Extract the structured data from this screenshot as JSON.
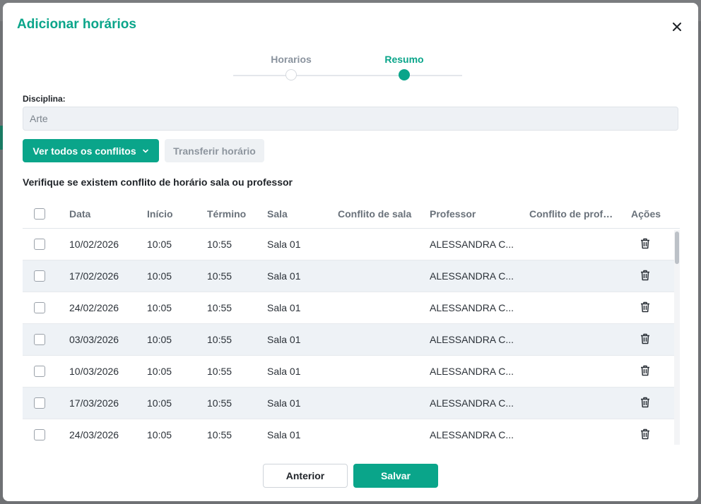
{
  "modal": {
    "title": "Adicionar horários"
  },
  "stepper": {
    "steps": [
      {
        "label": "Horarios",
        "state": "done"
      },
      {
        "label": "Resumo",
        "state": "active"
      }
    ]
  },
  "form": {
    "discipline_label": "Disciplina:",
    "discipline_value": "Arte"
  },
  "actions": {
    "conflicts_label": "Ver todos os conflitos",
    "transfer_label": "Transferir horário"
  },
  "section": {
    "heading": "Verifique se existem conflito de horário sala ou professor"
  },
  "table": {
    "columns": {
      "date": "Data",
      "start": "Início",
      "end": "Término",
      "room": "Sala",
      "room_conflict": "Conflito de sala",
      "teacher": "Professor",
      "teacher_conflict": "Conflito de prof…",
      "actions": "Ações"
    },
    "rows": [
      {
        "date": "10/02/2026",
        "start": "10:05",
        "end": "10:55",
        "room": "Sala 01",
        "room_conflict": "",
        "teacher": "ALESSANDRA C...",
        "teacher_conflict": ""
      },
      {
        "date": "17/02/2026",
        "start": "10:05",
        "end": "10:55",
        "room": "Sala 01",
        "room_conflict": "",
        "teacher": "ALESSANDRA C...",
        "teacher_conflict": ""
      },
      {
        "date": "24/02/2026",
        "start": "10:05",
        "end": "10:55",
        "room": "Sala 01",
        "room_conflict": "",
        "teacher": "ALESSANDRA C...",
        "teacher_conflict": ""
      },
      {
        "date": "03/03/2026",
        "start": "10:05",
        "end": "10:55",
        "room": "Sala 01",
        "room_conflict": "",
        "teacher": "ALESSANDRA C...",
        "teacher_conflict": ""
      },
      {
        "date": "10/03/2026",
        "start": "10:05",
        "end": "10:55",
        "room": "Sala 01",
        "room_conflict": "",
        "teacher": "ALESSANDRA C...",
        "teacher_conflict": ""
      },
      {
        "date": "17/03/2026",
        "start": "10:05",
        "end": "10:55",
        "room": "Sala 01",
        "room_conflict": "",
        "teacher": "ALESSANDRA C...",
        "teacher_conflict": ""
      },
      {
        "date": "24/03/2026",
        "start": "10:05",
        "end": "10:55",
        "room": "Sala 01",
        "room_conflict": "",
        "teacher": "ALESSANDRA C...",
        "teacher_conflict": ""
      }
    ],
    "row_action_icon": "trash-icon"
  },
  "footer": {
    "back_label": "Anterior",
    "save_label": "Salvar"
  },
  "colors": {
    "accent": "#0aa58a",
    "row_alt": "#eef2f6"
  }
}
